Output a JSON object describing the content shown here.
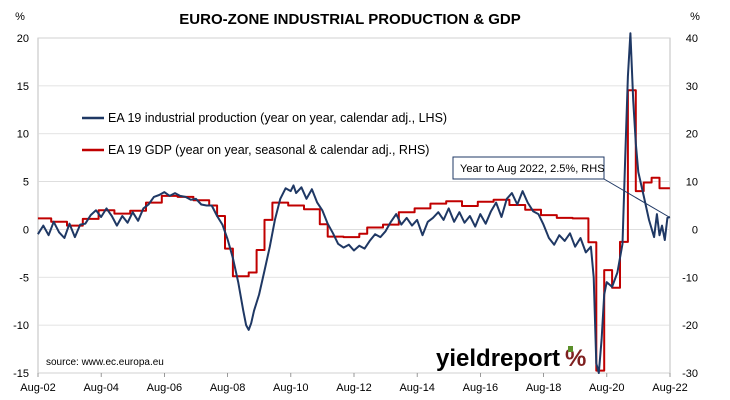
{
  "chart_data": {
    "type": "line",
    "title": "EURO-ZONE INDUSTRIAL PRODUCTION & GDP",
    "left_axis": {
      "unit_label": "%",
      "ylim": [
        -15,
        20
      ],
      "ticks": [
        20,
        15,
        10,
        5,
        0,
        -5,
        -10,
        -15
      ]
    },
    "right_axis": {
      "unit_label": "%",
      "ylim": [
        -30,
        40
      ],
      "ticks": [
        40,
        30,
        20,
        10,
        0,
        -10,
        -20,
        -30
      ]
    },
    "x_axis": {
      "xlim": [
        2002.583,
        2022.583
      ],
      "tick_labels": [
        "Aug-02",
        "Aug-04",
        "Aug-06",
        "Aug-08",
        "Aug-10",
        "Aug-12",
        "Aug-14",
        "Aug-16",
        "Aug-18",
        "Aug-20",
        "Aug-22"
      ]
    },
    "grid": "horizontal",
    "legend_placement": "upper-left",
    "series": [
      {
        "name": "EA 19 industrial production (year on year, calendar adj., LHS)",
        "axis": "left",
        "color": "#1f3864",
        "points": [
          [
            2002.58,
            -0.5
          ],
          [
            2002.75,
            0.4
          ],
          [
            2002.92,
            -0.6
          ],
          [
            2003.08,
            0.8
          ],
          [
            2003.25,
            -0.3
          ],
          [
            2003.42,
            -0.9
          ],
          [
            2003.58,
            0.6
          ],
          [
            2003.75,
            -0.8
          ],
          [
            2003.92,
            0.5
          ],
          [
            2004.08,
            0.6
          ],
          [
            2004.25,
            1.5
          ],
          [
            2004.42,
            2.0
          ],
          [
            2004.58,
            1.3
          ],
          [
            2004.75,
            2.2
          ],
          [
            2004.92,
            1.4
          ],
          [
            2005.08,
            0.4
          ],
          [
            2005.25,
            1.4
          ],
          [
            2005.42,
            0.7
          ],
          [
            2005.58,
            1.8
          ],
          [
            2005.75,
            0.9
          ],
          [
            2005.92,
            2.2
          ],
          [
            2006.08,
            2.6
          ],
          [
            2006.25,
            3.4
          ],
          [
            2006.42,
            3.6
          ],
          [
            2006.58,
            3.9
          ],
          [
            2006.75,
            3.5
          ],
          [
            2006.92,
            3.8
          ],
          [
            2007.08,
            3.5
          ],
          [
            2007.25,
            3.4
          ],
          [
            2007.42,
            3.1
          ],
          [
            2007.58,
            3.2
          ],
          [
            2007.75,
            2.6
          ],
          [
            2007.92,
            2.5
          ],
          [
            2008.08,
            2.5
          ],
          [
            2008.25,
            1.4
          ],
          [
            2008.42,
            0.5
          ],
          [
            2008.58,
            -1.0
          ],
          [
            2008.75,
            -3.0
          ],
          [
            2008.92,
            -5.5
          ],
          [
            2009.08,
            -8.5
          ],
          [
            2009.17,
            -10.0
          ],
          [
            2009.25,
            -10.5
          ],
          [
            2009.33,
            -9.8
          ],
          [
            2009.42,
            -8.5
          ],
          [
            2009.58,
            -6.8
          ],
          [
            2009.75,
            -4.3
          ],
          [
            2009.92,
            -1.8
          ],
          [
            2010.08,
            1.0
          ],
          [
            2010.25,
            3.2
          ],
          [
            2010.42,
            4.3
          ],
          [
            2010.58,
            4.0
          ],
          [
            2010.67,
            4.6
          ],
          [
            2010.75,
            3.8
          ],
          [
            2010.92,
            4.4
          ],
          [
            2011.08,
            3.2
          ],
          [
            2011.25,
            4.2
          ],
          [
            2011.42,
            2.8
          ],
          [
            2011.58,
            2.0
          ],
          [
            2011.75,
            0.6
          ],
          [
            2011.92,
            -0.4
          ],
          [
            2012.08,
            -1.5
          ],
          [
            2012.25,
            -1.9
          ],
          [
            2012.42,
            -1.6
          ],
          [
            2012.58,
            -2.2
          ],
          [
            2012.75,
            -1.7
          ],
          [
            2012.92,
            -2.0
          ],
          [
            2013.08,
            -1.2
          ],
          [
            2013.25,
            -0.5
          ],
          [
            2013.42,
            -0.8
          ],
          [
            2013.58,
            -0.2
          ],
          [
            2013.75,
            0.8
          ],
          [
            2013.92,
            1.6
          ],
          [
            2014.08,
            0.5
          ],
          [
            2014.25,
            1.2
          ],
          [
            2014.42,
            0.4
          ],
          [
            2014.58,
            1.0
          ],
          [
            2014.75,
            -0.6
          ],
          [
            2014.92,
            0.8
          ],
          [
            2015.08,
            1.2
          ],
          [
            2015.25,
            1.8
          ],
          [
            2015.42,
            1.0
          ],
          [
            2015.58,
            2.2
          ],
          [
            2015.75,
            0.8
          ],
          [
            2015.92,
            1.8
          ],
          [
            2016.08,
            0.7
          ],
          [
            2016.25,
            1.4
          ],
          [
            2016.42,
            0.3
          ],
          [
            2016.58,
            1.6
          ],
          [
            2016.75,
            0.6
          ],
          [
            2016.92,
            1.9
          ],
          [
            2017.08,
            2.8
          ],
          [
            2017.25,
            1.3
          ],
          [
            2017.42,
            3.2
          ],
          [
            2017.58,
            3.8
          ],
          [
            2017.75,
            2.6
          ],
          [
            2017.92,
            4.0
          ],
          [
            2018.08,
            2.8
          ],
          [
            2018.25,
            1.9
          ],
          [
            2018.42,
            1.6
          ],
          [
            2018.58,
            0.5
          ],
          [
            2018.75,
            -0.9
          ],
          [
            2018.92,
            -1.6
          ],
          [
            2019.08,
            -0.6
          ],
          [
            2019.25,
            -1.2
          ],
          [
            2019.42,
            -0.4
          ],
          [
            2019.58,
            -1.8
          ],
          [
            2019.75,
            -0.9
          ],
          [
            2019.92,
            -2.4
          ],
          [
            2020.08,
            -1.8
          ],
          [
            2020.17,
            -5.0
          ],
          [
            2020.25,
            -14.0
          ],
          [
            2020.33,
            -15.0
          ],
          [
            2020.42,
            -11.5
          ],
          [
            2020.5,
            -6.8
          ],
          [
            2020.58,
            -5.5
          ],
          [
            2020.75,
            -6.0
          ],
          [
            2020.92,
            -4.5
          ],
          [
            2021.08,
            -1.5
          ],
          [
            2021.17,
            7.8
          ],
          [
            2021.25,
            16.0
          ],
          [
            2021.33,
            20.5
          ],
          [
            2021.42,
            13.5
          ],
          [
            2021.5,
            9.0
          ],
          [
            2021.58,
            6.0
          ],
          [
            2021.75,
            3.5
          ],
          [
            2021.92,
            1.0
          ],
          [
            2022.08,
            -0.8
          ],
          [
            2022.17,
            1.6
          ],
          [
            2022.25,
            -0.6
          ],
          [
            2022.33,
            0.4
          ],
          [
            2022.42,
            -1.1
          ],
          [
            2022.5,
            1.2
          ],
          [
            2022.58,
            1.3
          ]
        ]
      },
      {
        "name": "EA 19 GDP (year on year, seasonal & calendar adj., RHS)",
        "axis": "right",
        "color": "#c00000",
        "step": true,
        "points": [
          [
            2002.58,
            2.3
          ],
          [
            2003.0,
            1.6
          ],
          [
            2003.5,
            0.8
          ],
          [
            2004.0,
            2.2
          ],
          [
            2004.5,
            4.0
          ],
          [
            2005.0,
            3.3
          ],
          [
            2005.5,
            3.9
          ],
          [
            2006.0,
            5.6
          ],
          [
            2006.5,
            7.0
          ],
          [
            2007.0,
            6.8
          ],
          [
            2007.5,
            6.1
          ],
          [
            2008.0,
            5.0
          ],
          [
            2008.25,
            2.8
          ],
          [
            2008.5,
            -4.0
          ],
          [
            2008.75,
            -9.8
          ],
          [
            2009.25,
            -9.0
          ],
          [
            2009.5,
            -4.3
          ],
          [
            2009.75,
            2.0
          ],
          [
            2010.0,
            5.6
          ],
          [
            2010.5,
            5.0
          ],
          [
            2011.0,
            4.2
          ],
          [
            2011.5,
            1.1
          ],
          [
            2011.75,
            -1.5
          ],
          [
            2012.25,
            -1.6
          ],
          [
            2012.75,
            -0.9
          ],
          [
            2013.0,
            0.4
          ],
          [
            2013.5,
            1.0
          ],
          [
            2014.0,
            3.6
          ],
          [
            2014.5,
            4.4
          ],
          [
            2015.0,
            5.4
          ],
          [
            2015.5,
            5.9
          ],
          [
            2016.0,
            4.9
          ],
          [
            2016.5,
            5.8
          ],
          [
            2017.0,
            6.2
          ],
          [
            2017.5,
            5.1
          ],
          [
            2018.0,
            4.1
          ],
          [
            2018.5,
            3.0
          ],
          [
            2019.0,
            2.4
          ],
          [
            2019.5,
            2.3
          ],
          [
            2020.0,
            -2.7
          ],
          [
            2020.25,
            -29.5
          ],
          [
            2020.5,
            -8.5
          ],
          [
            2020.75,
            -12.2
          ],
          [
            2021.0,
            -2.6
          ],
          [
            2021.25,
            29.1
          ],
          [
            2021.5,
            8.0
          ],
          [
            2021.75,
            9.8
          ],
          [
            2022.0,
            10.8
          ],
          [
            2022.25,
            8.6
          ],
          [
            2022.58,
            8.6
          ]
        ]
      }
    ],
    "annotation": {
      "text": "Year to Aug 2022, 2.5%, RHS",
      "x": 2022.58,
      "y_right": 2.5
    }
  },
  "source": "source: www.ec.europa.eu",
  "brand": {
    "text": "yieldreport",
    "symbol": "%"
  }
}
